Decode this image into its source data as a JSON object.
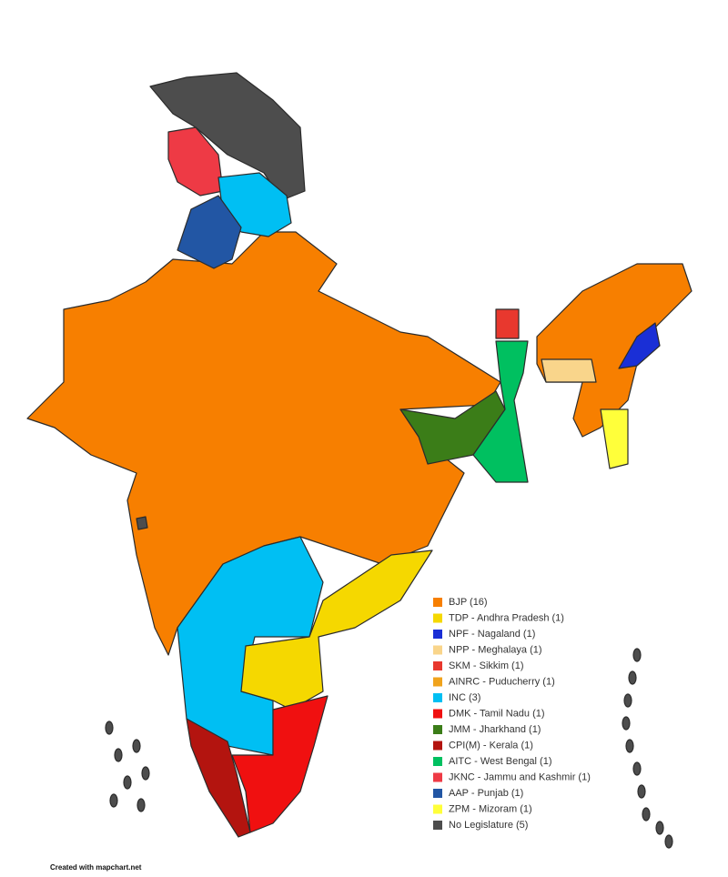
{
  "legend": {
    "items": [
      {
        "label": "BJP (16)",
        "color": "#f77f00"
      },
      {
        "label": "TDP - Andhra Pradesh (1)",
        "color": "#f5d800"
      },
      {
        "label": "NPF - Nagaland (1)",
        "color": "#1a2fd6"
      },
      {
        "label": "NPP - Meghalaya (1)",
        "color": "#f9d58b"
      },
      {
        "label": "SKM - Sikkim (1)",
        "color": "#e8382e"
      },
      {
        "label": "AINRC - Puducherry (1)",
        "color": "#f0a31c"
      },
      {
        "label": "INC (3)",
        "color": "#00bff3"
      },
      {
        "label": "DMK - Tamil Nadu (1)",
        "color": "#f01010"
      },
      {
        "label": "JMM - Jharkhand (1)",
        "color": "#3b7d18"
      },
      {
        "label": "CPI(M) - Kerala (1)",
        "color": "#b3140f"
      },
      {
        "label": "AITC - West Bengal (1)",
        "color": "#00c060"
      },
      {
        "label": "JKNC - Jammu and Kashmir (1)",
        "color": "#ee3a45"
      },
      {
        "label": "AAP - Punjab (1)",
        "color": "#2256a4"
      },
      {
        "label": "ZPM - Mizoram (1)",
        "color": "#ffff3a"
      },
      {
        "label": "No Legislature (5)",
        "color": "#4d4d4d"
      }
    ]
  },
  "credit": "Created with mapchart.net"
}
